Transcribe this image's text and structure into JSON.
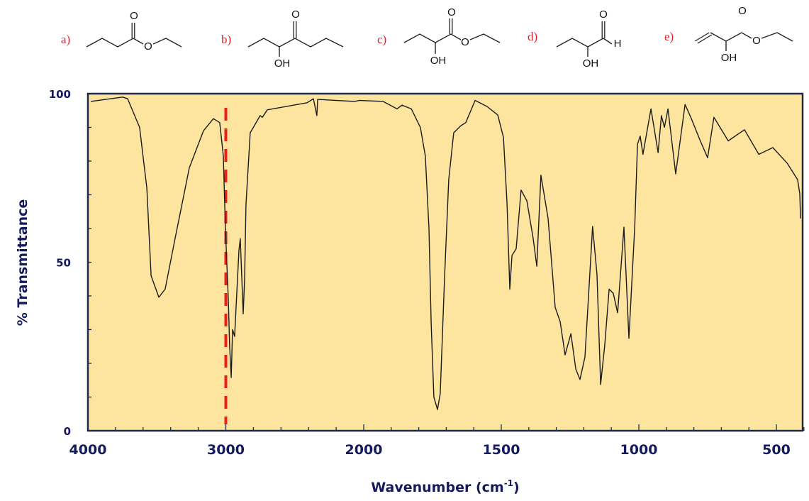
{
  "structures": [
    {
      "label": "a)",
      "atoms": [
        "O",
        "O"
      ]
    },
    {
      "label": "b)",
      "atoms": [
        "O",
        "OH"
      ]
    },
    {
      "label": "c)",
      "atoms": [
        "O",
        "O",
        "OH"
      ]
    },
    {
      "label": "d)",
      "atoms": [
        "O",
        "H",
        "OH"
      ]
    },
    {
      "label": "e)",
      "atoms": [
        "O",
        "O",
        "OH"
      ]
    }
  ],
  "chart_data": {
    "type": "line",
    "title": "",
    "xlabel": "Wavenumber (cm",
    "xlabel_sup": "-1",
    "xlabel_end": ")",
    "ylabel": "% Transmittance",
    "xlim": [
      4000,
      400
    ],
    "x_scale": "piecewise linear, scale doubles below 2000",
    "ylim": [
      0,
      100
    ],
    "x_ticks": [
      4000,
      3000,
      2000,
      1500,
      1000,
      500
    ],
    "x_tick_labels": [
      "4000",
      "3000",
      "2000",
      "1500",
      "1000",
      "500"
    ],
    "y_ticks": [
      0,
      50,
      100
    ],
    "y_tick_labels": [
      "0",
      "50",
      "100"
    ],
    "grid": false,
    "background_color": "#fde5a0",
    "line_color": "#1a1a1a",
    "marker_line": {
      "x": 3000,
      "style": "dashed",
      "color": "#ee1c1c"
    },
    "series": [
      {
        "x": [
          3979,
          3748,
          3712,
          3625,
          3573,
          3542,
          3486,
          3440,
          3368,
          3265,
          3162,
          3090,
          3044,
          3018,
          3003,
          2982,
          2972,
          2961,
          2951,
          2936,
          2905,
          2895,
          2874,
          2864,
          2854,
          2823,
          2751,
          2735,
          2699,
          2411,
          2365,
          2340,
          2334,
          2067,
          2031,
          1930,
          1879,
          1861,
          1827,
          1794,
          1776,
          1763,
          1755,
          1745,
          1732,
          1722,
          1706,
          1691,
          1673,
          1647,
          1629,
          1595,
          1552,
          1513,
          1492,
          1479,
          1469,
          1461,
          1446,
          1428,
          1407,
          1384,
          1371,
          1356,
          1330,
          1304,
          1286,
          1268,
          1247,
          1229,
          1214,
          1196,
          1168,
          1152,
          1139,
          1124,
          1108,
          1093,
          1077,
          1054,
          1036,
          1015,
          1005,
          995,
          985,
          956,
          930,
          918,
          907,
          894,
          866,
          832,
          809,
          778,
          750,
          727,
          675,
          616,
          564,
          513,
          461,
          423,
          415,
          412
        ],
        "y": [
          97.7,
          99,
          98.5,
          90,
          72,
          46,
          39.6,
          42,
          57,
          78,
          89,
          92.6,
          91.4,
          81.5,
          60,
          39,
          25,
          15.8,
          30,
          28,
          53.5,
          57,
          34.7,
          45,
          67,
          88.4,
          93.5,
          93,
          95.2,
          97.3,
          98.5,
          93.5,
          98.3,
          97.7,
          98,
          97.7,
          95.5,
          96.6,
          95.5,
          90,
          81.5,
          60,
          32,
          10,
          6.3,
          11,
          46,
          74.5,
          88.4,
          90.5,
          91.4,
          98,
          96.2,
          93.7,
          87,
          67.4,
          42,
          52,
          54,
          71.4,
          68.2,
          57,
          48.8,
          75.8,
          63,
          36.6,
          32.4,
          22.5,
          28.8,
          18.3,
          15.2,
          21.9,
          60.6,
          46.3,
          13.7,
          25.3,
          42,
          40.8,
          35,
          60.4,
          27.4,
          60.4,
          85,
          87.4,
          82,
          95.5,
          82.5,
          93.5,
          90,
          95.5,
          76.2,
          96.8,
          92.6,
          86.3,
          81,
          93,
          86,
          89.3,
          82,
          84,
          79.4,
          74.5,
          70.3,
          63
        ]
      }
    ]
  }
}
